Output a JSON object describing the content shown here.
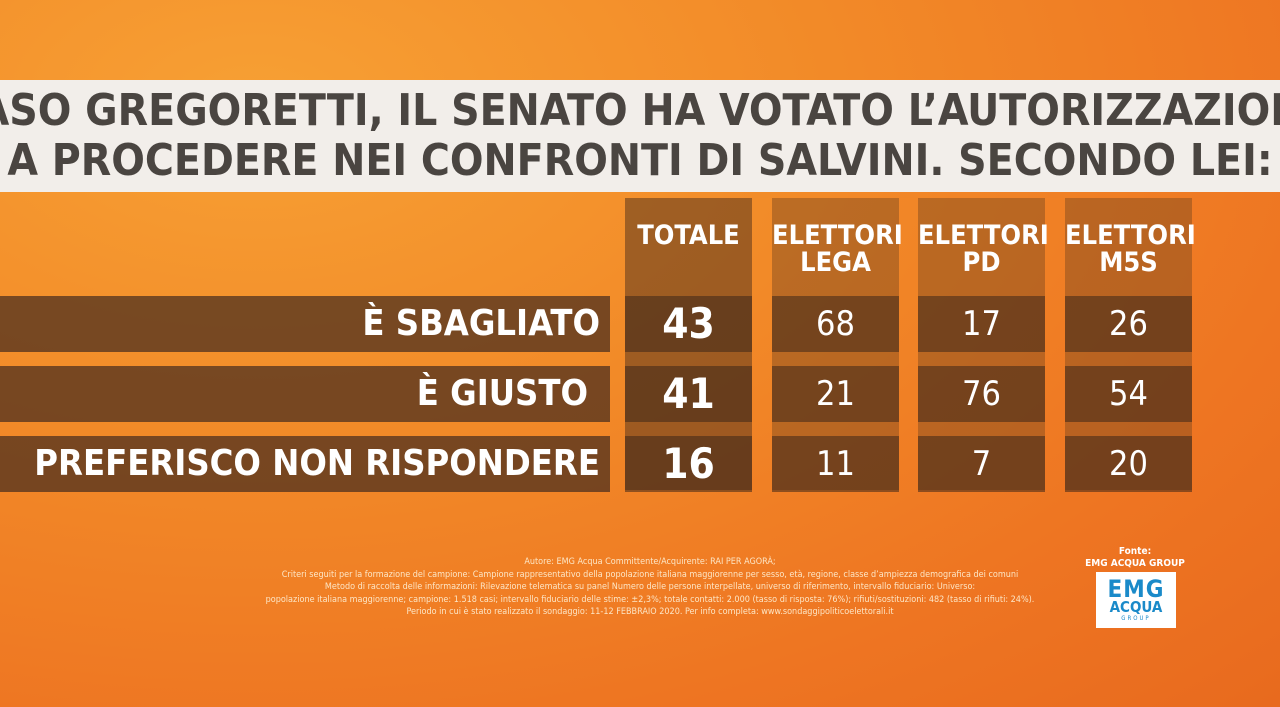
{
  "title": {
    "line1": "CASO GREGORETTI, IL SENATO HA VOTATO L’AUTORIZZAZIONE",
    "line2": "A PROCEDERE NEI CONFRONTI DI SALVINI. SECONDO LEI:"
  },
  "chart_data": {
    "type": "table",
    "columns": [
      "TOTALE",
      "ELETTORI\nLEGA",
      "ELETTORI\nPD",
      "ELETTORI\nM5S"
    ],
    "rows": [
      {
        "label": "È SBAGLIATO",
        "values": [
          43,
          68,
          17,
          26
        ]
      },
      {
        "label": "È GIUSTO",
        "values": [
          41,
          21,
          76,
          54
        ]
      },
      {
        "label": "PREFERISCO NON RISPONDERE",
        "values": [
          16,
          11,
          7,
          20
        ]
      }
    ]
  },
  "footnote": [
    "Autore: EMG Acqua Committente/Acquirente: RAI PER AGORÀ;",
    "Criteri seguiti per la formazione del campione: Campione rappresentativo della popolazione italiana maggiorenne per sesso, età, regione, classe d’ampiezza demografica dei comuni",
    "Metodo di raccolta delle informazioni: Rilevazione telematica su panel Numero delle persone interpellate, universo di riferimento, intervallo fiduciario: Universo:",
    "popolazione italiana maggiorenne; campione: 1.518 casi; intervallo fiduciario delle stime: ±2,3%; totale contatti: 2.000 (tasso di risposta: 76%); rifiuti/sostituzioni: 482 (tasso di rifiuti: 24%).",
    "Periodo in cui è stato realizzato il sondaggio: 11-12 FEBBRAIO 2020. Per info completa: www.sondaggipoliticoelettorali.it"
  ],
  "source": {
    "label": "Fonte:",
    "name": "EMG ACQUA GROUP",
    "logo_line1": "EMG",
    "logo_line2": "ACQUA",
    "logo_line3": "GROUP"
  }
}
